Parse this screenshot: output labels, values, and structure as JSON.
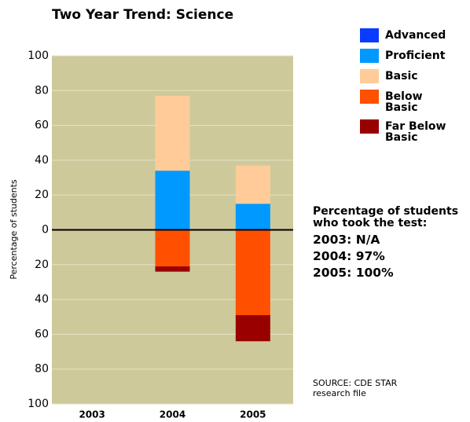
{
  "chart_data": {
    "type": "diverging-stacked-bar",
    "title": "Two Year Trend: Science",
    "ylabel": "Percentage of students",
    "categories": [
      "2003",
      "2004",
      "2005"
    ],
    "series": [
      {
        "name": "Advanced",
        "color": "#0a3cff",
        "values": [
          null,
          0,
          0
        ]
      },
      {
        "name": "Proficient",
        "color": "#0099ff",
        "values": [
          null,
          34,
          15
        ]
      },
      {
        "name": "Basic",
        "color": "#ffcc99",
        "values": [
          null,
          43,
          22
        ]
      },
      {
        "name": "Below Basic",
        "color": "#ff5000",
        "values": [
          null,
          -21,
          -49
        ]
      },
      {
        "name": "Far Below Basic",
        "color": "#990000",
        "values": [
          null,
          -3,
          -15
        ]
      }
    ],
    "ylim": [
      -100,
      100
    ],
    "yticks": [
      {
        "value": -100,
        "label": "100"
      },
      {
        "value": -80,
        "label": "80"
      },
      {
        "value": -60,
        "label": "60"
      },
      {
        "value": -40,
        "label": "40"
      },
      {
        "value": -20,
        "label": "20"
      },
      0,
      20,
      40,
      60,
      80,
      100
    ],
    "grid": true,
    "annotations": {
      "heading": "Percentage of students who took the test:",
      "rows": [
        "2003: N/A",
        "2004: 97%",
        "2005: 100%"
      ],
      "source": "SOURCE: CDE STAR research file"
    }
  }
}
